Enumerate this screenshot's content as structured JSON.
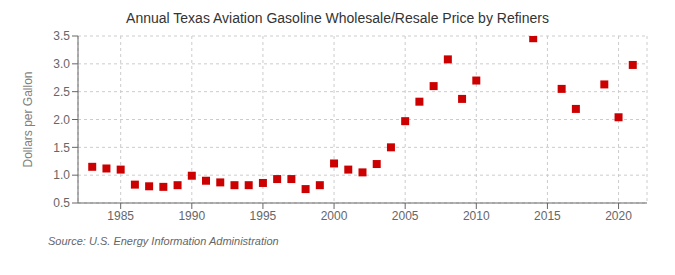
{
  "chart_data": {
    "type": "scatter",
    "title": "Annual Texas Aviation Gasoline Wholesale/Resale Price by Refiners",
    "ylabel": "Dollars per Gallon",
    "annotations": [
      "Source: U.S. Energy Information Administration"
    ],
    "x": [
      1983,
      1984,
      1985,
      1986,
      1987,
      1988,
      1989,
      1990,
      1991,
      1992,
      1993,
      1994,
      1995,
      1996,
      1997,
      1998,
      1999,
      2000,
      2001,
      2002,
      2003,
      2004,
      2005,
      2006,
      2007,
      2008,
      2009,
      2010,
      2014,
      2016,
      2017,
      2019,
      2020,
      2021
    ],
    "values": [
      1.15,
      1.12,
      1.1,
      0.83,
      0.8,
      0.79,
      0.82,
      0.99,
      0.9,
      0.87,
      0.82,
      0.82,
      0.86,
      0.93,
      0.93,
      0.75,
      0.82,
      1.21,
      1.1,
      1.05,
      1.2,
      1.5,
      1.97,
      2.32,
      2.6,
      3.08,
      2.37,
      2.7,
      3.46,
      2.55,
      2.19,
      2.63,
      2.04,
      2.98
    ],
    "color": "#cc0000",
    "marker": "square",
    "xlim": [
      1982,
      2022
    ],
    "ylim": [
      0.5,
      3.5
    ],
    "xticks": [
      1985,
      1990,
      1995,
      2000,
      2005,
      2010,
      2015,
      2020
    ],
    "yticks": [
      0.5,
      {
        "value": 1,
        "label": "1.0"
      },
      1.5,
      {
        "value": 2,
        "label": "2.0"
      },
      2.5,
      {
        "value": 3,
        "label": "3.0"
      },
      3.5
    ],
    "grid": true
  }
}
